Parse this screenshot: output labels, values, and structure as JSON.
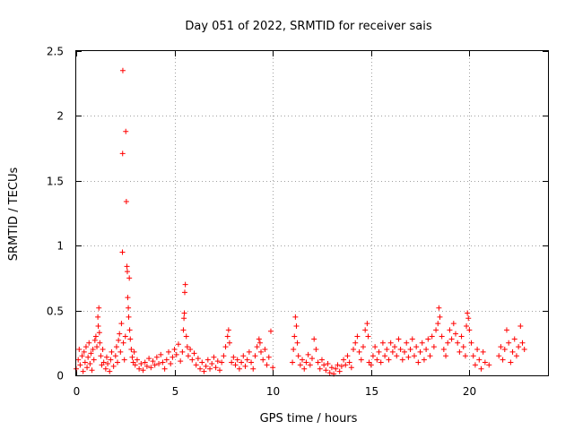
{
  "chart_data": {
    "type": "scatter",
    "title": "Day 051 of 2022, SRMTID for receiver sais",
    "xlabel": "GPS time / hours",
    "ylabel": "SRMTID / TECUs",
    "xlim": [
      0,
      24
    ],
    "ylim": [
      0,
      2.5
    ],
    "xticks": [
      0,
      5,
      10,
      15,
      20
    ],
    "xtick_labels": [
      "0",
      "5",
      "10",
      "15",
      "20"
    ],
    "yticks": [
      0,
      0.5,
      1,
      1.5,
      2,
      2.5
    ],
    "ytick_labels": [
      "0",
      "0.5",
      "1",
      "1.5",
      "2",
      "2.5"
    ],
    "grid": true,
    "marker": "+",
    "color": "#ff0000",
    "series": [
      {
        "name": "sais",
        "points": [
          [
            0.0,
            0.05
          ],
          [
            0.1,
            0.12
          ],
          [
            0.15,
            0.2
          ],
          [
            0.2,
            0.08
          ],
          [
            0.3,
            0.15
          ],
          [
            0.35,
            0.03
          ],
          [
            0.4,
            0.18
          ],
          [
            0.45,
            0.1
          ],
          [
            0.5,
            0.22
          ],
          [
            0.55,
            0.06
          ],
          [
            0.6,
            0.14
          ],
          [
            0.65,
            0.25
          ],
          [
            0.7,
            0.09
          ],
          [
            0.75,
            0.17
          ],
          [
            0.8,
            0.04
          ],
          [
            0.85,
            0.2
          ],
          [
            0.9,
            0.12
          ],
          [
            0.95,
            0.27
          ],
          [
            1.0,
            0.3
          ],
          [
            1.05,
            0.22
          ],
          [
            1.1,
            0.45
          ],
          [
            1.12,
            0.38
          ],
          [
            1.15,
            0.52
          ],
          [
            1.18,
            0.33
          ],
          [
            1.2,
            0.25
          ],
          [
            1.25,
            0.15
          ],
          [
            1.3,
            0.08
          ],
          [
            1.35,
            0.2
          ],
          [
            1.4,
            0.1
          ],
          [
            1.5,
            0.05
          ],
          [
            1.55,
            0.14
          ],
          [
            1.6,
            0.09
          ],
          [
            1.7,
            0.03
          ],
          [
            1.75,
            0.12
          ],
          [
            1.8,
            0.18
          ],
          [
            1.9,
            0.07
          ],
          [
            2.0,
            0.15
          ],
          [
            2.05,
            0.22
          ],
          [
            2.1,
            0.1
          ],
          [
            2.15,
            0.27
          ],
          [
            2.2,
            0.32
          ],
          [
            2.25,
            0.18
          ],
          [
            2.3,
            0.4
          ],
          [
            2.35,
            0.95
          ],
          [
            2.36,
            1.71
          ],
          [
            2.37,
            2.35
          ],
          [
            2.4,
            0.25
          ],
          [
            2.45,
            0.12
          ],
          [
            2.5,
            0.3
          ],
          [
            2.52,
            1.88
          ],
          [
            2.55,
            1.34
          ],
          [
            2.58,
            0.84
          ],
          [
            2.6,
            0.8
          ],
          [
            2.62,
            0.6
          ],
          [
            2.65,
            0.52
          ],
          [
            2.67,
            0.45
          ],
          [
            2.7,
            0.75
          ],
          [
            2.72,
            0.35
          ],
          [
            2.75,
            0.28
          ],
          [
            2.8,
            0.2
          ],
          [
            2.85,
            0.14
          ],
          [
            2.9,
            0.1
          ],
          [
            2.95,
            0.18
          ],
          [
            3.0,
            0.08
          ],
          [
            3.1,
            0.12
          ],
          [
            3.2,
            0.05
          ],
          [
            3.3,
            0.09
          ],
          [
            3.4,
            0.04
          ],
          [
            3.5,
            0.1
          ],
          [
            3.6,
            0.07
          ],
          [
            3.7,
            0.13
          ],
          [
            3.8,
            0.06
          ],
          [
            3.9,
            0.11
          ],
          [
            4.0,
            0.08
          ],
          [
            4.1,
            0.14
          ],
          [
            4.2,
            0.09
          ],
          [
            4.3,
            0.16
          ],
          [
            4.4,
            0.1
          ],
          [
            4.5,
            0.05
          ],
          [
            4.6,
            0.12
          ],
          [
            4.7,
            0.18
          ],
          [
            4.8,
            0.09
          ],
          [
            4.9,
            0.14
          ],
          [
            5.0,
            0.2
          ],
          [
            5.1,
            0.16
          ],
          [
            5.2,
            0.24
          ],
          [
            5.3,
            0.11
          ],
          [
            5.4,
            0.18
          ],
          [
            5.45,
            0.35
          ],
          [
            5.48,
            0.44
          ],
          [
            5.5,
            0.48
          ],
          [
            5.52,
            0.64
          ],
          [
            5.55,
            0.7
          ],
          [
            5.6,
            0.3
          ],
          [
            5.65,
            0.22
          ],
          [
            5.7,
            0.15
          ],
          [
            5.8,
            0.2
          ],
          [
            5.9,
            0.12
          ],
          [
            6.0,
            0.17
          ],
          [
            6.1,
            0.08
          ],
          [
            6.2,
            0.13
          ],
          [
            6.3,
            0.05
          ],
          [
            6.4,
            0.1
          ],
          [
            6.5,
            0.03
          ],
          [
            6.6,
            0.07
          ],
          [
            6.7,
            0.12
          ],
          [
            6.8,
            0.05
          ],
          [
            6.9,
            0.09
          ],
          [
            7.0,
            0.14
          ],
          [
            7.1,
            0.06
          ],
          [
            7.2,
            0.11
          ],
          [
            7.3,
            0.04
          ],
          [
            7.4,
            0.1
          ],
          [
            7.5,
            0.15
          ],
          [
            7.6,
            0.22
          ],
          [
            7.7,
            0.3
          ],
          [
            7.75,
            0.35
          ],
          [
            7.8,
            0.25
          ],
          [
            7.9,
            0.1
          ],
          [
            8.0,
            0.14
          ],
          [
            8.1,
            0.08
          ],
          [
            8.2,
            0.12
          ],
          [
            8.3,
            0.05
          ],
          [
            8.4,
            0.1
          ],
          [
            8.5,
            0.15
          ],
          [
            8.6,
            0.07
          ],
          [
            8.7,
            0.12
          ],
          [
            8.8,
            0.18
          ],
          [
            8.9,
            0.1
          ],
          [
            9.0,
            0.05
          ],
          [
            9.1,
            0.15
          ],
          [
            9.2,
            0.22
          ],
          [
            9.3,
            0.28
          ],
          [
            9.35,
            0.25
          ],
          [
            9.4,
            0.18
          ],
          [
            9.5,
            0.12
          ],
          [
            9.6,
            0.2
          ],
          [
            9.7,
            0.08
          ],
          [
            9.8,
            0.14
          ],
          [
            9.9,
            0.34
          ],
          [
            10.0,
            0.06
          ],
          [
            11.0,
            0.1
          ],
          [
            11.05,
            0.2
          ],
          [
            11.1,
            0.3
          ],
          [
            11.15,
            0.45
          ],
          [
            11.2,
            0.38
          ],
          [
            11.25,
            0.25
          ],
          [
            11.3,
            0.15
          ],
          [
            11.4,
            0.08
          ],
          [
            11.5,
            0.12
          ],
          [
            11.6,
            0.05
          ],
          [
            11.7,
            0.1
          ],
          [
            11.8,
            0.16
          ],
          [
            11.9,
            0.08
          ],
          [
            12.0,
            0.13
          ],
          [
            12.1,
            0.28
          ],
          [
            12.2,
            0.2
          ],
          [
            12.3,
            0.1
          ],
          [
            12.4,
            0.05
          ],
          [
            12.5,
            0.12
          ],
          [
            12.6,
            0.08
          ],
          [
            12.7,
            0.04
          ],
          [
            12.8,
            0.09
          ],
          [
            12.9,
            0.02
          ],
          [
            13.0,
            0.06
          ],
          [
            13.1,
            0.01
          ],
          [
            13.2,
            0.05
          ],
          [
            13.3,
            0.08
          ],
          [
            13.4,
            0.03
          ],
          [
            13.5,
            0.07
          ],
          [
            13.6,
            0.12
          ],
          [
            13.7,
            0.08
          ],
          [
            13.8,
            0.15
          ],
          [
            13.9,
            0.1
          ],
          [
            14.0,
            0.06
          ],
          [
            14.1,
            0.2
          ],
          [
            14.2,
            0.25
          ],
          [
            14.3,
            0.3
          ],
          [
            14.4,
            0.18
          ],
          [
            14.5,
            0.12
          ],
          [
            14.6,
            0.22
          ],
          [
            14.7,
            0.35
          ],
          [
            14.8,
            0.4
          ],
          [
            14.85,
            0.3
          ],
          [
            14.9,
            0.1
          ],
          [
            15.0,
            0.08
          ],
          [
            15.1,
            0.15
          ],
          [
            15.2,
            0.22
          ],
          [
            15.3,
            0.12
          ],
          [
            15.4,
            0.18
          ],
          [
            15.5,
            0.1
          ],
          [
            15.6,
            0.25
          ],
          [
            15.7,
            0.15
          ],
          [
            15.8,
            0.2
          ],
          [
            15.9,
            0.12
          ],
          [
            16.0,
            0.25
          ],
          [
            16.1,
            0.18
          ],
          [
            16.2,
            0.22
          ],
          [
            16.3,
            0.15
          ],
          [
            16.4,
            0.28
          ],
          [
            16.5,
            0.2
          ],
          [
            16.6,
            0.12
          ],
          [
            16.7,
            0.18
          ],
          [
            16.8,
            0.25
          ],
          [
            16.9,
            0.14
          ],
          [
            17.0,
            0.2
          ],
          [
            17.1,
            0.28
          ],
          [
            17.2,
            0.15
          ],
          [
            17.3,
            0.22
          ],
          [
            17.4,
            0.1
          ],
          [
            17.5,
            0.18
          ],
          [
            17.6,
            0.25
          ],
          [
            17.7,
            0.12
          ],
          [
            17.8,
            0.2
          ],
          [
            17.9,
            0.28
          ],
          [
            18.0,
            0.15
          ],
          [
            18.1,
            0.3
          ],
          [
            18.2,
            0.22
          ],
          [
            18.3,
            0.35
          ],
          [
            18.4,
            0.4
          ],
          [
            18.45,
            0.52
          ],
          [
            18.5,
            0.45
          ],
          [
            18.6,
            0.3
          ],
          [
            18.7,
            0.2
          ],
          [
            18.8,
            0.15
          ],
          [
            18.9,
            0.25
          ],
          [
            19.0,
            0.35
          ],
          [
            19.1,
            0.28
          ],
          [
            19.2,
            0.4
          ],
          [
            19.3,
            0.32
          ],
          [
            19.4,
            0.25
          ],
          [
            19.5,
            0.18
          ],
          [
            19.6,
            0.3
          ],
          [
            19.7,
            0.22
          ],
          [
            19.8,
            0.15
          ],
          [
            19.85,
            0.38
          ],
          [
            19.9,
            0.48
          ],
          [
            19.95,
            0.44
          ],
          [
            20.0,
            0.35
          ],
          [
            20.1,
            0.25
          ],
          [
            20.2,
            0.15
          ],
          [
            20.3,
            0.08
          ],
          [
            20.4,
            0.2
          ],
          [
            20.5,
            0.12
          ],
          [
            20.6,
            0.05
          ],
          [
            20.7,
            0.18
          ],
          [
            20.8,
            0.1
          ],
          [
            21.0,
            0.08
          ],
          [
            21.5,
            0.15
          ],
          [
            21.6,
            0.22
          ],
          [
            21.7,
            0.12
          ],
          [
            21.8,
            0.2
          ],
          [
            21.9,
            0.35
          ],
          [
            22.0,
            0.25
          ],
          [
            22.1,
            0.1
          ],
          [
            22.2,
            0.18
          ],
          [
            22.3,
            0.28
          ],
          [
            22.4,
            0.15
          ],
          [
            22.5,
            0.22
          ],
          [
            22.6,
            0.38
          ],
          [
            22.7,
            0.25
          ],
          [
            22.8,
            0.2
          ]
        ]
      }
    ]
  }
}
